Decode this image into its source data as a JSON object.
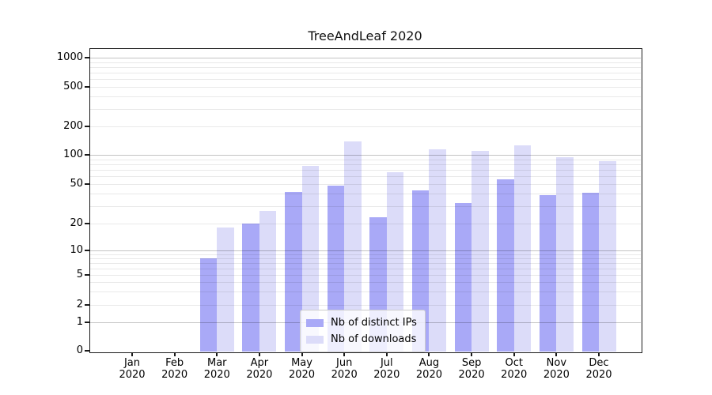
{
  "chart_data": {
    "type": "bar",
    "title": "TreeAndLeaf 2020",
    "scale_y": "symlog",
    "categories": [
      "Jan",
      "Feb",
      "Mar",
      "Apr",
      "May",
      "Jun",
      "Jul",
      "Aug",
      "Sep",
      "Oct",
      "Nov",
      "Dec"
    ],
    "category_year": "2020",
    "series": [
      {
        "name": "Nb of distinct IPs",
        "color": "#a9a9f7",
        "values": [
          0,
          0,
          8,
          20,
          42,
          48,
          23,
          43,
          32,
          56,
          39,
          41
        ]
      },
      {
        "name": "Nb of downloads",
        "color": "#dcdcf9",
        "values": [
          0,
          0,
          18,
          27,
          77,
          138,
          66,
          115,
          110,
          125,
          95,
          86
        ]
      }
    ],
    "yticks": [
      0,
      1,
      2,
      5,
      10,
      20,
      50,
      100,
      200,
      500,
      1000
    ],
    "ylim": [
      0,
      1250
    ],
    "grid": true,
    "legend_position": "lower center"
  }
}
